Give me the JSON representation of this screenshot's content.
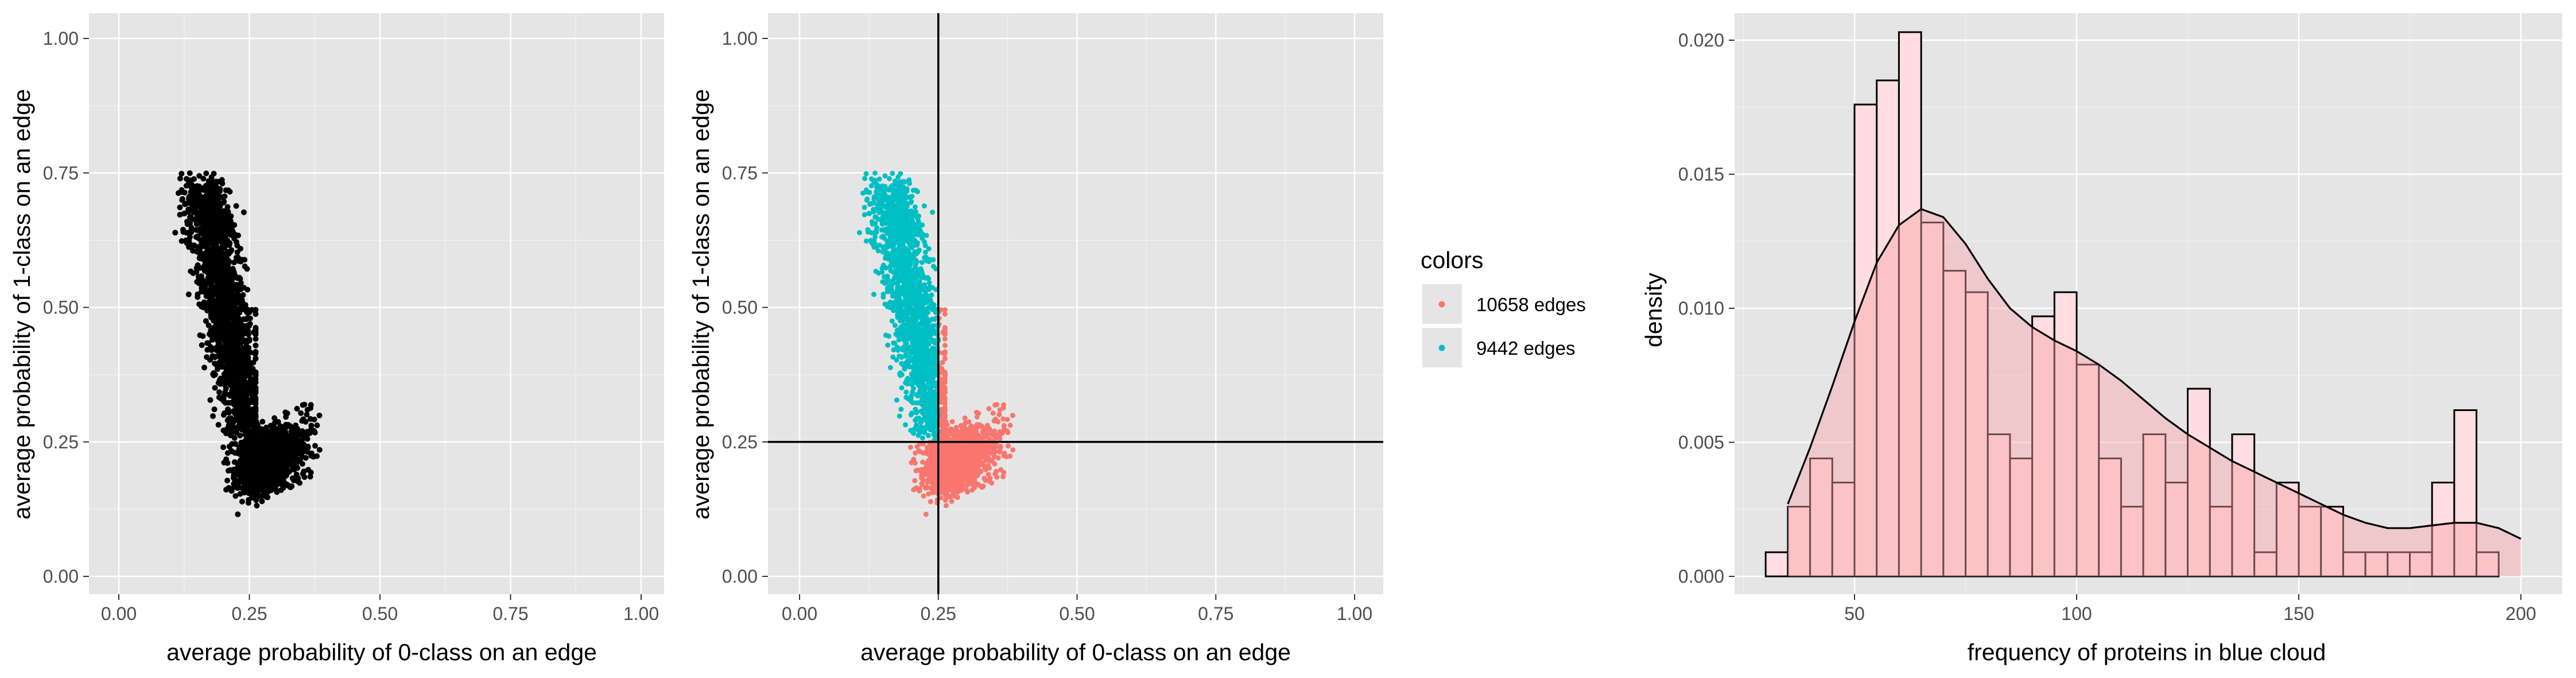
{
  "colors": {
    "panel_bg": "#e5e5e5",
    "grid": "#ffffff",
    "points_black": "#000000",
    "red": "#f8766d",
    "teal": "#00bfc4",
    "hist_fill": "#ffdde0",
    "density_fill": "#f8a5a8",
    "density_line": "#000000",
    "hist_outline": "#000000"
  },
  "chart_data": [
    {
      "type": "scatter",
      "xlabel": "average probability of 0-class on an edge",
      "ylabel": "average probability of 1-class on an edge",
      "xlim": [
        0,
        1
      ],
      "ylim": [
        0,
        1
      ],
      "x_ticks": [
        "0.00",
        "0.25",
        "0.50",
        "0.75",
        "1.00"
      ],
      "y_ticks": [
        "0.00",
        "0.25",
        "0.50",
        "0.75",
        "1.00"
      ],
      "grid": true,
      "series": [
        {
          "color": "#000000",
          "clusters": [
            {
              "x_mean": 0.185,
              "y_mean": 0.5,
              "description": "upper-left elongated cluster",
              "x_range": [
                0.11,
                0.26
              ],
              "y_range": [
                0.24,
                0.76
              ]
            },
            {
              "x_mean": 0.29,
              "y_mean": 0.22,
              "description": "lower-right blob",
              "x_range": [
                0.2,
                0.38
              ],
              "y_range": [
                0.11,
                0.33
              ]
            }
          ]
        }
      ]
    },
    {
      "type": "scatter",
      "xlabel": "average probability of 0-class on an edge",
      "ylabel": "average probability of 1-class on an edge",
      "xlim": [
        0,
        1
      ],
      "ylim": [
        0,
        1
      ],
      "x_ticks": [
        "0.00",
        "0.25",
        "0.50",
        "0.75",
        "1.00"
      ],
      "y_ticks": [
        "0.00",
        "0.25",
        "0.50",
        "0.75",
        "1.00"
      ],
      "grid": true,
      "reference_lines": {
        "vertical_x": 0.25,
        "horizontal_y": 0.25
      },
      "legend": {
        "title": "colors",
        "placement": "right",
        "entries": [
          {
            "label": "10658 edges",
            "color": "#f8766d"
          },
          {
            "label": "9442 edges",
            "color": "#00bfc4"
          }
        ]
      },
      "series": [
        {
          "name": "10658 edges",
          "color": "#f8766d",
          "x_range": [
            0.2,
            0.38
          ],
          "y_range": [
            0.11,
            0.33
          ]
        },
        {
          "name": "9442 edges",
          "color": "#00bfc4",
          "x_range": [
            0.11,
            0.25
          ],
          "y_range": [
            0.25,
            0.76
          ]
        }
      ]
    },
    {
      "type": "histogram",
      "xlabel": "frequency of proteins in blue cloud",
      "ylabel": "density",
      "xlim": [
        26,
        202
      ],
      "ylim": [
        0,
        0.021
      ],
      "x_ticks": [
        "50",
        "100",
        "150",
        "200"
      ],
      "y_ticks": [
        "0.000",
        "0.005",
        "0.010",
        "0.015",
        "0.020"
      ],
      "grid": true,
      "bin_width": 5,
      "bins": [
        {
          "x": [
            30,
            35
          ],
          "density": 0.0009
        },
        {
          "x": [
            35,
            40
          ],
          "density": 0.0026
        },
        {
          "x": [
            40,
            45
          ],
          "density": 0.0044
        },
        {
          "x": [
            45,
            50
          ],
          "density": 0.0035
        },
        {
          "x": [
            50,
            55
          ],
          "density": 0.0176
        },
        {
          "x": [
            55,
            60
          ],
          "density": 0.0185
        },
        {
          "x": [
            60,
            65
          ],
          "density": 0.0203
        },
        {
          "x": [
            65,
            70
          ],
          "density": 0.0132
        },
        {
          "x": [
            70,
            75
          ],
          "density": 0.0114
        },
        {
          "x": [
            75,
            80
          ],
          "density": 0.0106
        },
        {
          "x": [
            80,
            85
          ],
          "density": 0.0053
        },
        {
          "x": [
            85,
            90
          ],
          "density": 0.0044
        },
        {
          "x": [
            90,
            95
          ],
          "density": 0.0097
        },
        {
          "x": [
            95,
            100
          ],
          "density": 0.0106
        },
        {
          "x": [
            100,
            105
          ],
          "density": 0.0079
        },
        {
          "x": [
            105,
            110
          ],
          "density": 0.0044
        },
        {
          "x": [
            110,
            115
          ],
          "density": 0.0026
        },
        {
          "x": [
            115,
            120
          ],
          "density": 0.0053
        },
        {
          "x": [
            120,
            125
          ],
          "density": 0.0035
        },
        {
          "x": [
            125,
            130
          ],
          "density": 0.007
        },
        {
          "x": [
            130,
            135
          ],
          "density": 0.0026
        },
        {
          "x": [
            135,
            140
          ],
          "density": 0.0053
        },
        {
          "x": [
            140,
            145
          ],
          "density": 0.0009
        },
        {
          "x": [
            145,
            150
          ],
          "density": 0.0035
        },
        {
          "x": [
            150,
            155
          ],
          "density": 0.0026
        },
        {
          "x": [
            155,
            160
          ],
          "density": 0.0026
        },
        {
          "x": [
            160,
            165
          ],
          "density": 0.0009
        },
        {
          "x": [
            165,
            170
          ],
          "density": 0.0009
        },
        {
          "x": [
            170,
            175
          ],
          "density": 0.0009
        },
        {
          "x": [
            175,
            180
          ],
          "density": 0.0009
        },
        {
          "x": [
            180,
            185
          ],
          "density": 0.0035
        },
        {
          "x": [
            185,
            190
          ],
          "density": 0.0062
        },
        {
          "x": [
            190,
            195
          ],
          "density": 0.0009
        }
      ],
      "density_curve": {
        "x": [
          35,
          40,
          45,
          50,
          55,
          60,
          65,
          70,
          75,
          80,
          85,
          90,
          95,
          100,
          105,
          110,
          115,
          120,
          125,
          130,
          135,
          140,
          145,
          150,
          155,
          160,
          165,
          170,
          175,
          180,
          185,
          190,
          195,
          200
        ],
        "y": [
          0.0027,
          0.0048,
          0.0071,
          0.0095,
          0.0117,
          0.0131,
          0.0137,
          0.0134,
          0.0124,
          0.0111,
          0.01,
          0.0093,
          0.0088,
          0.0084,
          0.0079,
          0.0073,
          0.0066,
          0.0059,
          0.0053,
          0.0048,
          0.0043,
          0.0039,
          0.0035,
          0.0031,
          0.0027,
          0.0023,
          0.002,
          0.0018,
          0.0018,
          0.0019,
          0.002,
          0.002,
          0.0018,
          0.0014
        ]
      }
    }
  ]
}
